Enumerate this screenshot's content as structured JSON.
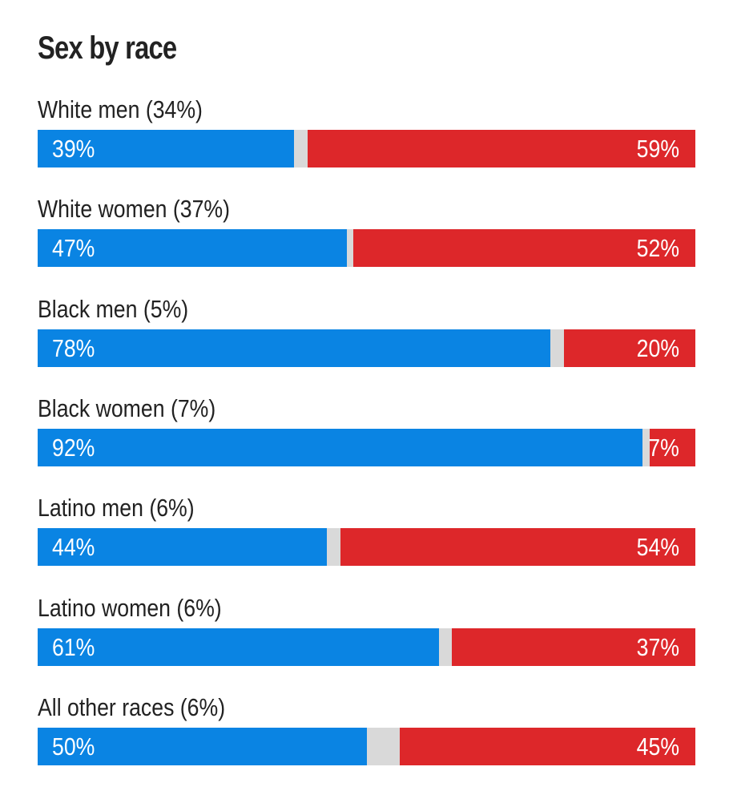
{
  "colors": {
    "dem": "#0a84e3",
    "rep": "#dd272a",
    "other": "#d9d9d9",
    "text": "#222222"
  },
  "chart_data": {
    "type": "bar",
    "orientation": "horizontal",
    "stacked": true,
    "title": "Sex by race",
    "xlim": [
      0,
      100
    ],
    "grid": false,
    "legend": "none",
    "categories": [
      "White men (34%)",
      "White women (37%)",
      "Black men (5%)",
      "Black women (7%)",
      "Latino men (6%)",
      "Latino women (6%)",
      "All other races (6%)"
    ],
    "series": [
      {
        "values": [
          39,
          47,
          78,
          92,
          44,
          61,
          50
        ],
        "labels": [
          "39%",
          "47%",
          "78%",
          "92%",
          "44%",
          "61%",
          "50%"
        ]
      },
      {
        "values": [
          59,
          52,
          20,
          7,
          54,
          37,
          45
        ],
        "labels": [
          "59%",
          "52%",
          "20%",
          "7%",
          "54%",
          "37%",
          "45%"
        ]
      }
    ]
  }
}
